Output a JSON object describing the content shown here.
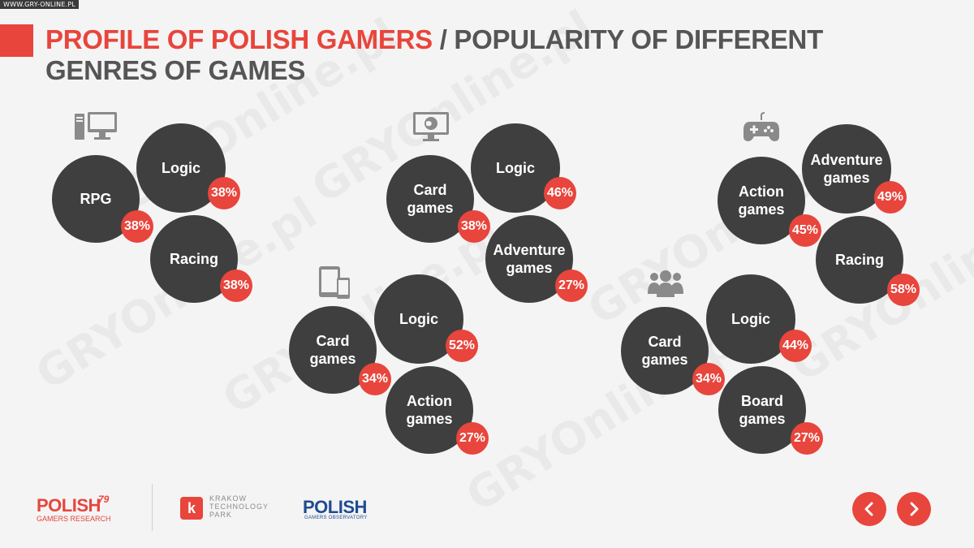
{
  "source_label": "WWW.GRY-ONLINE.PL",
  "title": {
    "highlight": "PROFILE OF POLISH GAMERS",
    "rest": " / POPULARITY OF DIFFERENT GENRES OF GAMES"
  },
  "watermark_text": "GRYOnline.pl",
  "platforms": {
    "pc": {
      "icon": "desktop-computer-icon",
      "genres": [
        {
          "label": "RPG",
          "value": "38%"
        },
        {
          "label": "Logic",
          "value": "38%"
        },
        {
          "label": "Racing",
          "value": "38%"
        }
      ]
    },
    "web": {
      "icon": "browser-monitor-icon",
      "genres": [
        {
          "label": "Card games",
          "value": "38%"
        },
        {
          "label": "Logic",
          "value": "46%"
        },
        {
          "label": "Adventure games",
          "value": "27%"
        }
      ]
    },
    "mobile": {
      "icon": "tablet-phone-icon",
      "genres": [
        {
          "label": "Card games",
          "value": "34%"
        },
        {
          "label": "Logic",
          "value": "52%"
        },
        {
          "label": "Action games",
          "value": "27%"
        }
      ]
    },
    "console": {
      "icon": "gamepad-icon",
      "genres": [
        {
          "label": "Action games",
          "value": "45%"
        },
        {
          "label": "Adventure games",
          "value": "49%"
        },
        {
          "label": "Racing",
          "value": "58%"
        }
      ]
    },
    "social": {
      "icon": "people-group-icon",
      "genres": [
        {
          "label": "Card games",
          "value": "34%"
        },
        {
          "label": "Logic",
          "value": "44%"
        },
        {
          "label": "Board games",
          "value": "27%"
        }
      ]
    }
  },
  "footer": {
    "polish79": {
      "main": "POLISH",
      "sup": "79",
      "sub": "GAMERS RESEARCH"
    },
    "krakow": {
      "letter": "k",
      "line1": "KRAKOW",
      "line2": "TECHNOLOGY",
      "line3": "PARK"
    },
    "observatory": {
      "main": "POLISH",
      "sub": "GAMERS OBSERVATORY"
    }
  },
  "nav": {
    "prev_icon": "chevron-left-icon",
    "next_icon": "chevron-right-icon"
  },
  "colors": {
    "accent": "#e8453c",
    "bubble": "#3f3f3f",
    "text_dark": "#555555"
  }
}
